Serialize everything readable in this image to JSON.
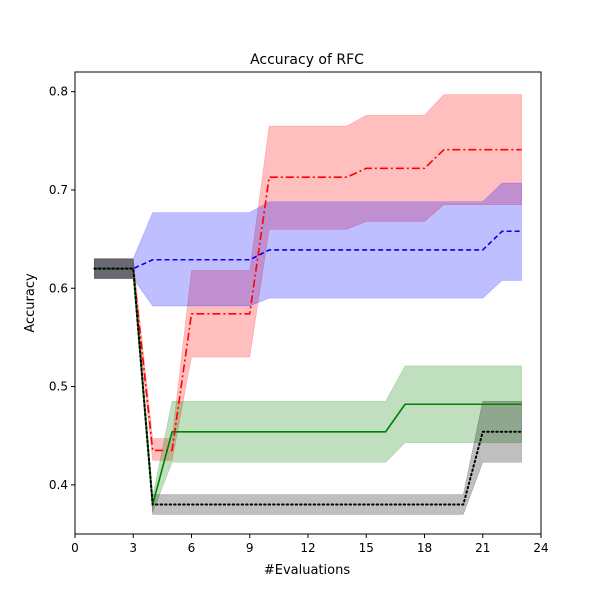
{
  "chart_data": {
    "type": "line",
    "title": "Accuracy of RFC",
    "xlabel": "#Evaluations",
    "ylabel": "Accuracy",
    "xlim": [
      0,
      24
    ],
    "ylim": [
      0.35,
      0.82
    ],
    "xticks": [
      0,
      3,
      6,
      9,
      12,
      15,
      18,
      21,
      24
    ],
    "yticks": [
      0.4,
      0.5,
      0.6,
      0.7,
      0.8
    ],
    "grid": false,
    "series": [
      {
        "color": "#ff0000",
        "linestyle": "dashdot",
        "x": [
          1,
          2,
          3,
          4,
          5,
          6,
          7,
          8,
          9,
          10,
          11,
          12,
          13,
          14,
          15,
          16,
          17,
          18,
          19,
          20,
          21,
          22,
          23
        ],
        "mean": [
          0.62,
          0.62,
          0.62,
          0.435,
          0.435,
          0.574,
          0.574,
          0.574,
          0.574,
          0.713,
          0.713,
          0.713,
          0.713,
          0.713,
          0.722,
          0.722,
          0.722,
          0.722,
          0.741,
          0.741,
          0.741,
          0.741,
          0.741
        ],
        "lower": [
          0.61,
          0.61,
          0.61,
          0.425,
          0.425,
          0.53,
          0.53,
          0.53,
          0.53,
          0.66,
          0.66,
          0.66,
          0.66,
          0.66,
          0.668,
          0.668,
          0.668,
          0.668,
          0.685,
          0.685,
          0.685,
          0.685,
          0.685
        ],
        "upper": [
          0.63,
          0.63,
          0.63,
          0.447,
          0.447,
          0.618,
          0.618,
          0.618,
          0.618,
          0.765,
          0.765,
          0.765,
          0.765,
          0.765,
          0.776,
          0.776,
          0.776,
          0.776,
          0.797,
          0.797,
          0.797,
          0.797,
          0.797
        ]
      },
      {
        "color": "#0000ff",
        "linestyle": "dashed",
        "x": [
          1,
          2,
          3,
          4,
          5,
          6,
          7,
          8,
          9,
          10,
          11,
          12,
          13,
          14,
          15,
          16,
          17,
          18,
          19,
          20,
          21,
          22,
          23
        ],
        "mean": [
          0.62,
          0.62,
          0.62,
          0.629,
          0.629,
          0.629,
          0.629,
          0.629,
          0.629,
          0.639,
          0.639,
          0.639,
          0.639,
          0.639,
          0.639,
          0.639,
          0.639,
          0.639,
          0.639,
          0.639,
          0.639,
          0.658,
          0.658
        ],
        "lower": [
          0.61,
          0.61,
          0.61,
          0.582,
          0.582,
          0.582,
          0.582,
          0.582,
          0.582,
          0.59,
          0.59,
          0.59,
          0.59,
          0.59,
          0.59,
          0.59,
          0.59,
          0.59,
          0.59,
          0.59,
          0.59,
          0.608,
          0.608
        ],
        "upper": [
          0.63,
          0.63,
          0.63,
          0.677,
          0.677,
          0.677,
          0.677,
          0.677,
          0.677,
          0.688,
          0.688,
          0.688,
          0.688,
          0.688,
          0.688,
          0.688,
          0.688,
          0.688,
          0.688,
          0.688,
          0.688,
          0.707,
          0.707
        ]
      },
      {
        "color": "#008000",
        "linestyle": "solid",
        "x": [
          1,
          2,
          3,
          4,
          5,
          6,
          7,
          8,
          9,
          10,
          11,
          12,
          13,
          14,
          15,
          16,
          17,
          18,
          19,
          20,
          21,
          22,
          23
        ],
        "mean": [
          0.62,
          0.62,
          0.62,
          0.38,
          0.454,
          0.454,
          0.454,
          0.454,
          0.454,
          0.454,
          0.454,
          0.454,
          0.454,
          0.454,
          0.454,
          0.454,
          0.482,
          0.482,
          0.482,
          0.482,
          0.482,
          0.482,
          0.482
        ],
        "lower": [
          0.61,
          0.61,
          0.61,
          0.372,
          0.423,
          0.423,
          0.423,
          0.423,
          0.423,
          0.423,
          0.423,
          0.423,
          0.423,
          0.423,
          0.423,
          0.423,
          0.443,
          0.443,
          0.443,
          0.443,
          0.443,
          0.443,
          0.443
        ],
        "upper": [
          0.63,
          0.63,
          0.63,
          0.388,
          0.485,
          0.485,
          0.485,
          0.485,
          0.485,
          0.485,
          0.485,
          0.485,
          0.485,
          0.485,
          0.485,
          0.485,
          0.521,
          0.521,
          0.521,
          0.521,
          0.521,
          0.521,
          0.521
        ]
      },
      {
        "color": "#000000",
        "linestyle": "dotted",
        "x": [
          1,
          2,
          3,
          4,
          5,
          6,
          7,
          8,
          9,
          10,
          11,
          12,
          13,
          14,
          15,
          16,
          17,
          18,
          19,
          20,
          21,
          22,
          23
        ],
        "mean": [
          0.62,
          0.62,
          0.62,
          0.38,
          0.38,
          0.38,
          0.38,
          0.38,
          0.38,
          0.38,
          0.38,
          0.38,
          0.38,
          0.38,
          0.38,
          0.38,
          0.38,
          0.38,
          0.38,
          0.38,
          0.454,
          0.454,
          0.454
        ],
        "lower": [
          0.61,
          0.61,
          0.61,
          0.37,
          0.37,
          0.37,
          0.37,
          0.37,
          0.37,
          0.37,
          0.37,
          0.37,
          0.37,
          0.37,
          0.37,
          0.37,
          0.37,
          0.37,
          0.37,
          0.37,
          0.423,
          0.423,
          0.423
        ],
        "upper": [
          0.63,
          0.63,
          0.63,
          0.39,
          0.39,
          0.39,
          0.39,
          0.39,
          0.39,
          0.39,
          0.39,
          0.39,
          0.39,
          0.39,
          0.39,
          0.39,
          0.39,
          0.39,
          0.39,
          0.39,
          0.485,
          0.485,
          0.485
        ]
      }
    ]
  }
}
